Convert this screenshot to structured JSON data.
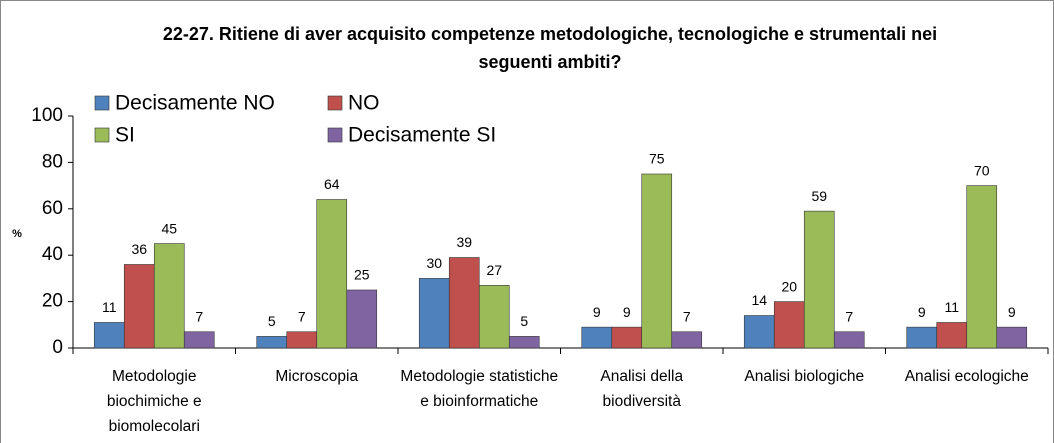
{
  "chart_data": {
    "type": "bar",
    "title": "22-27. Ritiene di aver acquisito competenze metodologiche, tecnologiche e strumentali nei seguenti ambiti?",
    "ylabel": "%",
    "categories": [
      "Metodologie biochimiche e biomolecolari",
      "Microscopia",
      "Metodologie statistiche e bioinformatiche",
      "Analisi della biodiversità",
      "Analisi biologiche",
      "Analisi ecologiche"
    ],
    "series": [
      {
        "name": "Decisamente NO",
        "color": "#4f81bd",
        "values": [
          11,
          5,
          30,
          9,
          14,
          9
        ]
      },
      {
        "name": "NO",
        "color": "#c0504d",
        "values": [
          36,
          7,
          39,
          9,
          20,
          11
        ]
      },
      {
        "name": "SI",
        "color": "#9bbb59",
        "values": [
          45,
          64,
          27,
          75,
          59,
          70
        ]
      },
      {
        "name": "Decisamente SI",
        "color": "#8064a2",
        "values": [
          7,
          25,
          5,
          7,
          7,
          9
        ]
      }
    ],
    "ylim": [
      0,
      100
    ],
    "yticks": [
      0,
      20,
      40,
      60,
      80,
      100
    ],
    "grid": false,
    "legend": "top-left"
  }
}
